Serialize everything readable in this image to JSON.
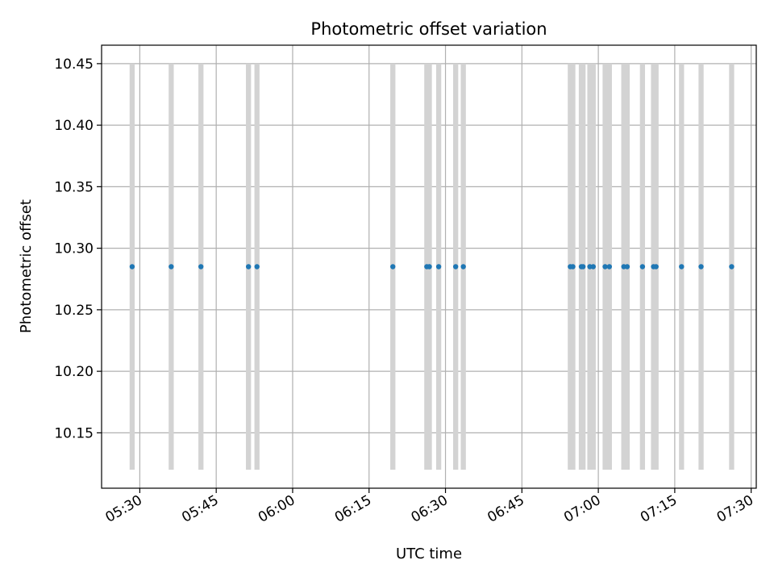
{
  "chart_data": {
    "type": "scatter",
    "title": "Photometric offset variation",
    "xlabel": "UTC time",
    "ylabel": "Photometric offset",
    "grid": true,
    "xlim": [
      "05:22:30",
      "07:31:00"
    ],
    "ylim": [
      10.105,
      10.465
    ],
    "x_ticks": [
      "05:30",
      "05:45",
      "06:00",
      "06:15",
      "06:30",
      "06:45",
      "07:00",
      "07:15",
      "07:30"
    ],
    "y_ticks": [
      10.15,
      10.2,
      10.25,
      10.3,
      10.35,
      10.4,
      10.45
    ],
    "y_tick_labels": [
      "10.15",
      "10.20",
      "10.25",
      "10.30",
      "10.35",
      "10.40",
      "10.45"
    ],
    "band_range": [
      10.12,
      10.45
    ],
    "colors": {
      "points": "#1f77b4",
      "bands": "#d3d3d3",
      "grid": "#b0b0b0"
    },
    "points": [
      {
        "t": "05:28:30",
        "y": 10.285
      },
      {
        "t": "05:36:10",
        "y": 10.285
      },
      {
        "t": "05:42:00",
        "y": 10.285
      },
      {
        "t": "05:51:20",
        "y": 10.285
      },
      {
        "t": "05:53:00",
        "y": 10.285
      },
      {
        "t": "06:19:40",
        "y": 10.285
      },
      {
        "t": "06:26:20",
        "y": 10.285
      },
      {
        "t": "06:26:50",
        "y": 10.285
      },
      {
        "t": "06:28:40",
        "y": 10.285
      },
      {
        "t": "06:32:00",
        "y": 10.285
      },
      {
        "t": "06:33:30",
        "y": 10.285
      },
      {
        "t": "06:54:30",
        "y": 10.285
      },
      {
        "t": "06:55:00",
        "y": 10.285
      },
      {
        "t": "06:56:40",
        "y": 10.285
      },
      {
        "t": "06:57:00",
        "y": 10.285
      },
      {
        "t": "06:58:20",
        "y": 10.285
      },
      {
        "t": "06:59:00",
        "y": 10.285
      },
      {
        "t": "07:01:20",
        "y": 10.285
      },
      {
        "t": "07:02:10",
        "y": 10.285
      },
      {
        "t": "07:05:00",
        "y": 10.285
      },
      {
        "t": "07:05:40",
        "y": 10.285
      },
      {
        "t": "07:08:40",
        "y": 10.285
      },
      {
        "t": "07:10:50",
        "y": 10.285
      },
      {
        "t": "07:11:20",
        "y": 10.285
      },
      {
        "t": "07:16:20",
        "y": 10.285
      },
      {
        "t": "07:20:10",
        "y": 10.285
      },
      {
        "t": "07:26:10",
        "y": 10.285
      }
    ],
    "bands": [
      {
        "start": "05:28:00",
        "end": "05:29:00"
      },
      {
        "start": "05:35:40",
        "end": "05:36:40"
      },
      {
        "start": "05:41:30",
        "end": "05:42:30"
      },
      {
        "start": "05:50:50",
        "end": "05:51:50"
      },
      {
        "start": "05:52:30",
        "end": "05:53:30"
      },
      {
        "start": "06:19:10",
        "end": "06:20:10"
      },
      {
        "start": "06:25:50",
        "end": "06:27:20"
      },
      {
        "start": "06:28:10",
        "end": "06:29:10"
      },
      {
        "start": "06:31:30",
        "end": "06:32:30"
      },
      {
        "start": "06:33:00",
        "end": "06:34:00"
      },
      {
        "start": "06:54:00",
        "end": "06:55:30"
      },
      {
        "start": "06:56:10",
        "end": "06:57:30"
      },
      {
        "start": "06:57:50",
        "end": "06:59:30"
      },
      {
        "start": "07:00:50",
        "end": "07:02:40"
      },
      {
        "start": "07:04:30",
        "end": "07:06:10"
      },
      {
        "start": "07:08:10",
        "end": "07:09:10"
      },
      {
        "start": "07:10:20",
        "end": "07:11:50"
      },
      {
        "start": "07:15:50",
        "end": "07:16:50"
      },
      {
        "start": "07:19:40",
        "end": "07:20:40"
      },
      {
        "start": "07:25:40",
        "end": "07:26:40"
      }
    ]
  }
}
